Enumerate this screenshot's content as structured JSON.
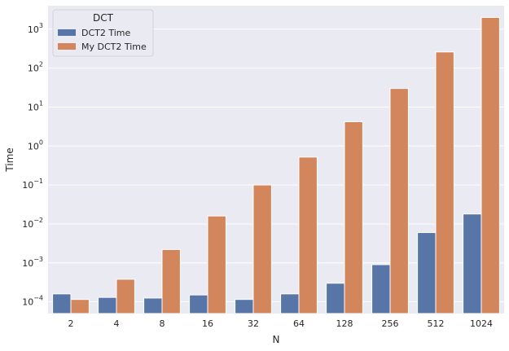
{
  "chart_data": {
    "type": "bar",
    "title": "",
    "xlabel": "N",
    "ylabel": "Time",
    "yscale": "log",
    "ylim": [
      5e-05,
      4000
    ],
    "yticks": [
      0.0001,
      0.001,
      0.01,
      0.1,
      1,
      10,
      100,
      1000
    ],
    "ytick_labels": [
      {
        "base": "10",
        "exp": "−4"
      },
      {
        "base": "10",
        "exp": "−3"
      },
      {
        "base": "10",
        "exp": "−2"
      },
      {
        "base": "10",
        "exp": "−1"
      },
      {
        "base": "10",
        "exp": "0"
      },
      {
        "base": "10",
        "exp": "1"
      },
      {
        "base": "10",
        "exp": "2"
      },
      {
        "base": "10",
        "exp": "3"
      }
    ],
    "categories": [
      "2",
      "4",
      "8",
      "16",
      "32",
      "64",
      "128",
      "256",
      "512",
      "1024"
    ],
    "grid": true,
    "legend": {
      "title": "DCT",
      "placement": "top-left"
    },
    "series": [
      {
        "name": "DCT2 Time",
        "color": "#5875a8",
        "values": [
          0.00016,
          0.00013,
          0.000125,
          0.00015,
          0.000115,
          0.00016,
          0.0003,
          0.0009,
          0.006,
          0.018
        ]
      },
      {
        "name": "My DCT2 Time",
        "color": "#d3865c",
        "values": [
          0.000115,
          0.00038,
          0.0022,
          0.016,
          0.1,
          0.52,
          4.2,
          30,
          260,
          2000
        ]
      }
    ],
    "plot_background": "#eaeaf2",
    "grid_color": "#ffffff"
  }
}
